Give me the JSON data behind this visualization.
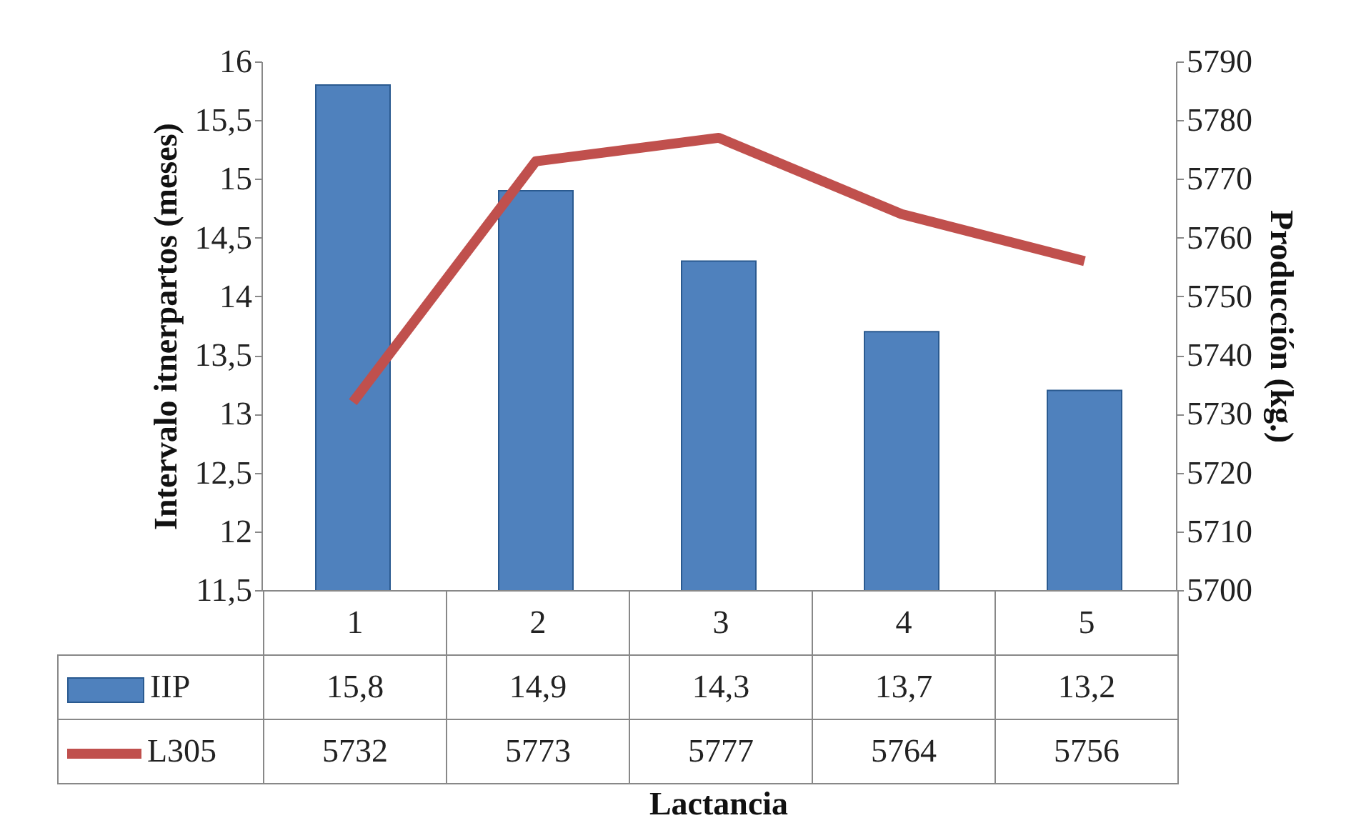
{
  "chart_data": {
    "type": "bar",
    "xlabel": "Lactancia",
    "ylabel": "Intervalo itnerpartos (meses)",
    "y2label": "Producción (kg.)",
    "categories": [
      "1",
      "2",
      "3",
      "4",
      "5"
    ],
    "series": [
      {
        "name": "IIP",
        "color": "#4f81bd",
        "values": [
          15.8,
          14.9,
          14.3,
          13.7,
          13.2
        ],
        "value_labels": [
          "15,8",
          "14,9",
          "14,3",
          "13,7",
          "13,2"
        ]
      },
      {
        "name": "L305",
        "type": "line",
        "axis": "y2",
        "color": "#c0504d",
        "values": [
          5732,
          5773,
          5777,
          5764,
          5756
        ],
        "value_labels": [
          "5732",
          "5773",
          "5777",
          "5764",
          "5756"
        ]
      }
    ],
    "ylim": [
      11.5,
      16
    ],
    "yticks": [
      {
        "value": 11.5,
        "label": "11,5"
      },
      12,
      {
        "value": 12.5,
        "label": "12,5"
      },
      13,
      {
        "value": 13.5,
        "label": "13,5"
      },
      14,
      {
        "value": 14.5,
        "label": "14,5"
      },
      15,
      {
        "value": 15.5,
        "label": "15,5"
      },
      16
    ],
    "y2lim": [
      5700,
      5790
    ],
    "y2ticks": [
      5700,
      5710,
      5720,
      5730,
      5740,
      5750,
      5760,
      5770,
      5780,
      5790
    ],
    "legend": "bottom",
    "grid": false
  }
}
